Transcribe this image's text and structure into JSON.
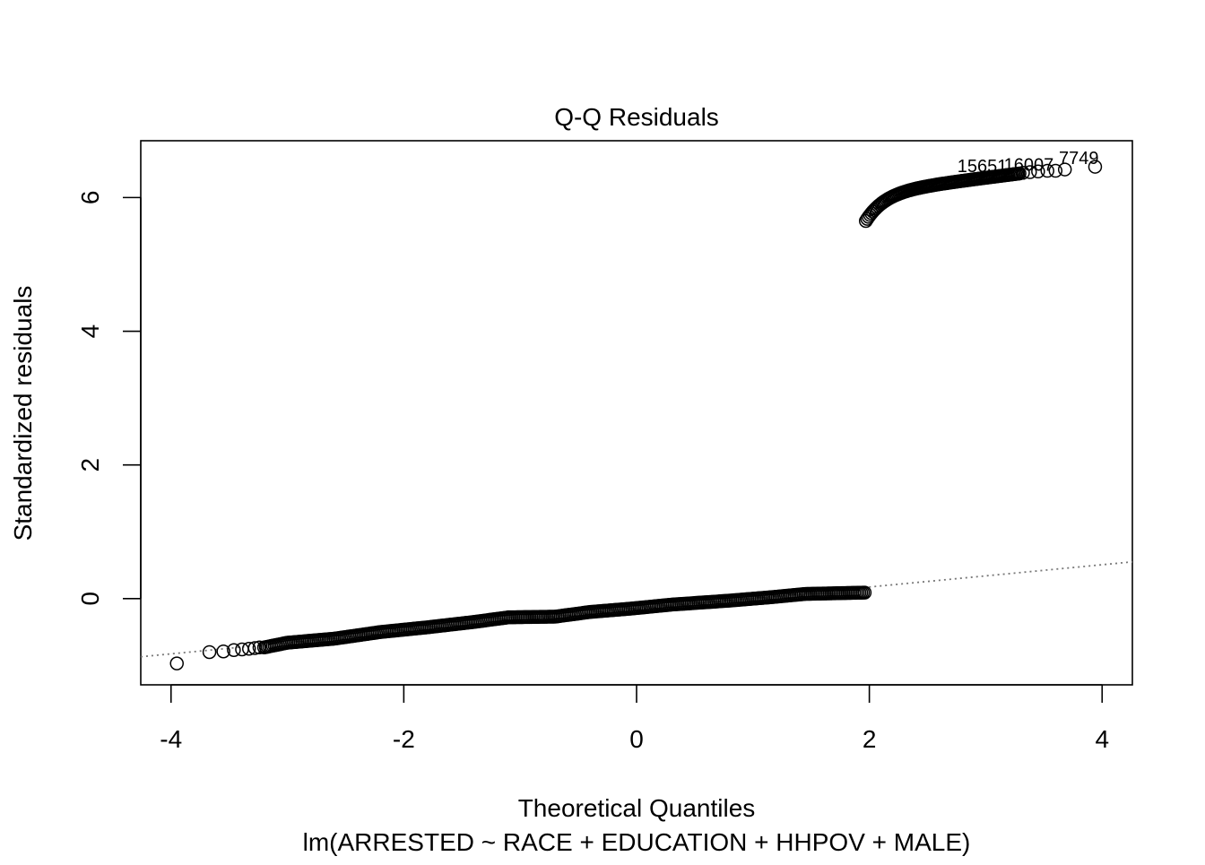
{
  "chart_data": {
    "type": "scatter",
    "title": "Q-Q Residuals",
    "xlabel": "Theoretical Quantiles",
    "ylabel": "Standardized residuals",
    "subtitle": "lm(ARRESTED ~ RACE + EDUCATION + HHPOV + MALE)",
    "xlim": [
      -4.26,
      4.26
    ],
    "ylim": [
      -1.29,
      6.85
    ],
    "x_ticks": [
      -4,
      -2,
      0,
      2,
      4
    ],
    "y_ticks": [
      0,
      2,
      4,
      6
    ],
    "grid": false,
    "legend": "none",
    "reference_line": {
      "x": [
        -4.26,
        4.26
      ],
      "y": [
        -0.87,
        0.55
      ],
      "style": "dotted",
      "color": "#777777"
    },
    "lower_segment": {
      "x_start": -3.2,
      "x_end": 1.97,
      "y_start": -0.73,
      "y_end": 0.1,
      "step": 0.015
    },
    "upper_segment": {
      "x_start": 1.97,
      "x_end": 3.3,
      "step": 0.012
    },
    "series": [
      {
        "points_lower_tail": [
          [
            -3.95,
            -0.97
          ],
          [
            -3.67,
            -0.8
          ],
          [
            -3.55,
            -0.79
          ],
          [
            -3.46,
            -0.77
          ],
          [
            -3.39,
            -0.76
          ],
          [
            -3.33,
            -0.75
          ],
          [
            -3.28,
            -0.74
          ],
          [
            -3.24,
            -0.73
          ]
        ],
        "points_upper_tail": [
          [
            3.32,
            6.37
          ],
          [
            3.38,
            6.38
          ],
          [
            3.45,
            6.39
          ],
          [
            3.53,
            6.4
          ],
          [
            3.6,
            6.4
          ],
          [
            3.68,
            6.42
          ],
          [
            3.94,
            6.46
          ]
        ]
      }
    ],
    "annotations": [
      {
        "text": "7749",
        "x": 3.8,
        "y": 6.5
      },
      {
        "text": "15651",
        "x": 2.97,
        "y": 6.38
      },
      {
        "text": "16007",
        "x": 3.37,
        "y": 6.4
      }
    ]
  }
}
